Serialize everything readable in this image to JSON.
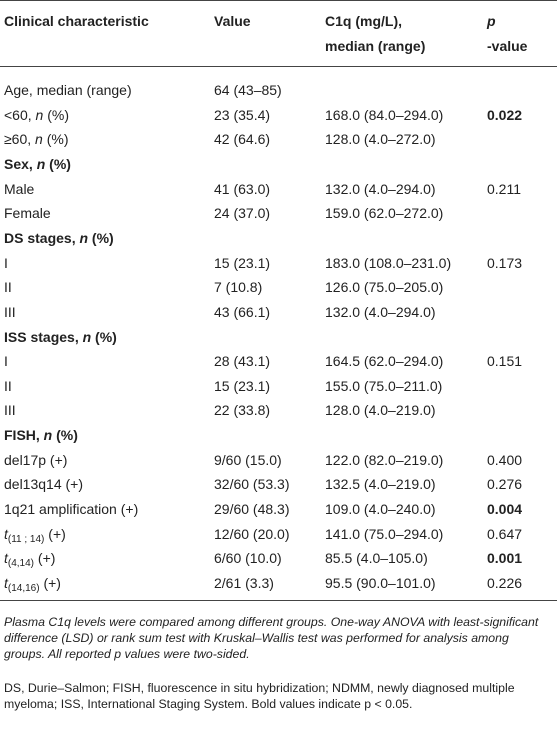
{
  "table": {
    "headers": [
      [
        "Clinical characteristic"
      ],
      [
        "Value"
      ],
      [
        "C1q (mg/L),",
        "median (range)"
      ],
      [
        {
          "text": "p",
          "style": "i"
        },
        "-value"
      ]
    ],
    "rows": [
      {
        "label": [
          "Age, median (range)"
        ],
        "value": "64 (43–85)"
      },
      {
        "label": [
          "<60, ",
          {
            "text": "n",
            "style": "i"
          },
          " (%)"
        ],
        "value": "23 (35.4)",
        "c1q": "168.0 (84.0–294.0)",
        "p": "0.022",
        "p_bold": true
      },
      {
        "label": [
          "≥60, ",
          {
            "text": "n",
            "style": "i"
          },
          " (%)"
        ],
        "value": "42 (64.6)",
        "c1q": "128.0 (4.0–272.0)"
      },
      {
        "label": [
          "Sex, ",
          {
            "text": "n",
            "style": "i"
          },
          " (%)"
        ],
        "section": true
      },
      {
        "label": [
          "Male"
        ],
        "value": "41 (63.0)",
        "c1q": "132.0 (4.0–294.0)",
        "p": "0.211"
      },
      {
        "label": [
          "Female"
        ],
        "value": "24 (37.0)",
        "c1q": "159.0 (62.0–272.0)"
      },
      {
        "label": [
          "DS stages, ",
          {
            "text": "n",
            "style": "i"
          },
          " (%)"
        ],
        "section": true
      },
      {
        "label": [
          "I"
        ],
        "value": "15 (23.1)",
        "c1q": "183.0 (108.0–231.0)",
        "p": "0.173"
      },
      {
        "label": [
          "II"
        ],
        "value": "7 (10.8)",
        "c1q": "126.0 (75.0–205.0)"
      },
      {
        "label": [
          "III"
        ],
        "value": "43 (66.1)",
        "c1q": "132.0 (4.0–294.0)"
      },
      {
        "label": [
          "ISS stages, ",
          {
            "text": "n",
            "style": "i"
          },
          " (%)"
        ],
        "section": true
      },
      {
        "label": [
          "I"
        ],
        "value": "28 (43.1)",
        "c1q": "164.5 (62.0–294.0)",
        "p": "0.151"
      },
      {
        "label": [
          "II"
        ],
        "value": "15 (23.1)",
        "c1q": "155.0 (75.0–211.0)"
      },
      {
        "label": [
          "III"
        ],
        "value": "22 (33.8)",
        "c1q": "128.0 (4.0–219.0)"
      },
      {
        "label": [
          "FISH, ",
          {
            "text": "n",
            "style": "i"
          },
          " (%)"
        ],
        "section": true
      },
      {
        "label": [
          "del17p (+)"
        ],
        "value": "9/60 (15.0)",
        "c1q": "122.0 (82.0–219.0)",
        "p": "0.400"
      },
      {
        "label": [
          "del13q14 (+)"
        ],
        "value": "32/60 (53.3)",
        "c1q": "132.5 (4.0–219.0)",
        "p": "0.276"
      },
      {
        "label": [
          "1q21 amplification (+)"
        ],
        "value": "29/60 (48.3)",
        "c1q": "109.0 (4.0–240.0)",
        "p": "0.004",
        "p_bold": true
      },
      {
        "label": [
          {
            "text": "t",
            "style": "i"
          },
          {
            "text": "(11 ; 14)",
            "style": "sub"
          },
          " (+)"
        ],
        "value": "12/60 (20.0)",
        "c1q": "141.0 (75.0–294.0)",
        "p": "0.647"
      },
      {
        "label": [
          {
            "text": "t",
            "style": "i"
          },
          {
            "text": "(4,14)",
            "style": "sub"
          },
          " (+)"
        ],
        "value": "6/60 (10.0)",
        "c1q": "85.5 (4.0–105.0)",
        "p": "0.001",
        "p_bold": true
      },
      {
        "label": [
          {
            "text": "t",
            "style": "i"
          },
          {
            "text": "(14,16)",
            "style": "sub"
          },
          " (+)"
        ],
        "value": "2/61 (3.3)",
        "c1q": "95.5 (90.0–101.0)",
        "p": "0.226"
      }
    ],
    "footnotes": [
      "Plasma C1q levels were compared among different groups. One-way ANOVA with least-significant difference (LSD) or rank sum test with Kruskal–Wallis test was performed for analysis among groups. All reported p values were two-sided.",
      "DS, Durie–Salmon; FISH, fluorescence in situ hybridization; NDMM, newly diagnosed multiple myeloma; ISS, International Staging System. Bold values indicate p < 0.05."
    ]
  }
}
